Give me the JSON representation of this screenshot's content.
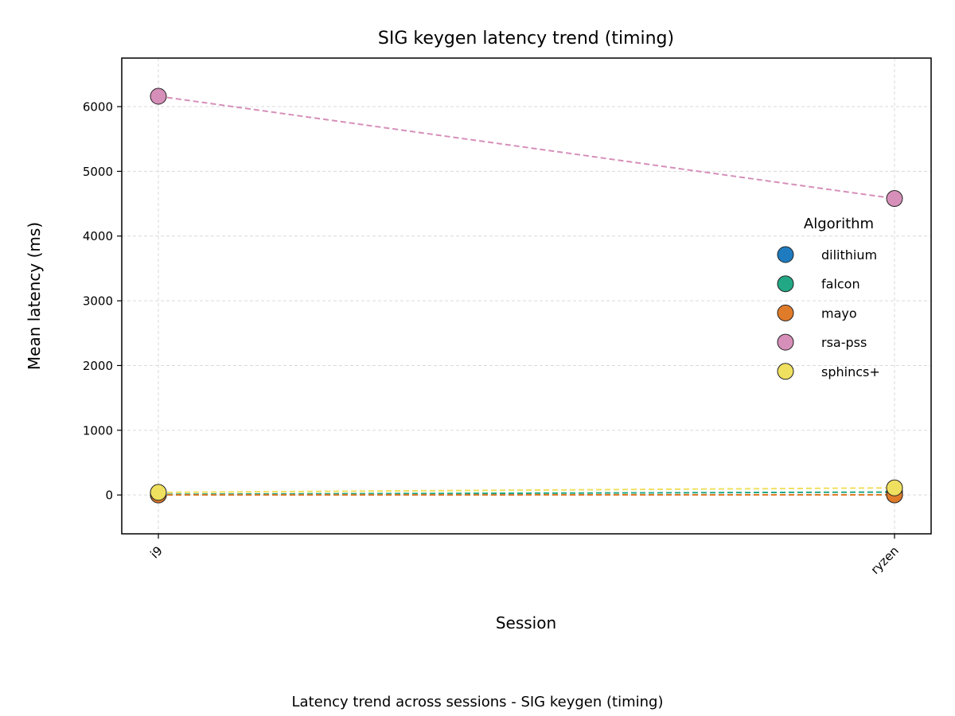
{
  "chart_data": {
    "type": "line",
    "title": "SIG keygen latency trend (timing)",
    "xlabel": "Session",
    "ylabel": "Mean latency (ms)",
    "caption": "Latency trend across sessions - SIG keygen (timing)",
    "categories": [
      "i9",
      "ryzen"
    ],
    "ylim": [
      -600,
      6750
    ],
    "yticks": [
      0,
      1000,
      2000,
      3000,
      4000,
      5000,
      6000
    ],
    "grid": true,
    "line_style": "dashed",
    "legend": {
      "title": "Algorithm",
      "placement": "center-right"
    },
    "series": [
      {
        "name": "dilithium",
        "color": "#1f7bbf",
        "values": [
          2,
          3
        ]
      },
      {
        "name": "falcon",
        "color": "#22a884",
        "values": [
          10,
          45
        ]
      },
      {
        "name": "mayo",
        "color": "#e07b2a",
        "values": [
          1,
          2
        ]
      },
      {
        "name": "rsa-pss",
        "color": "#d68fb9",
        "values": [
          6160,
          4580
        ]
      },
      {
        "name": "sphincs+",
        "color": "#f0e060",
        "values": [
          40,
          110
        ]
      }
    ]
  }
}
